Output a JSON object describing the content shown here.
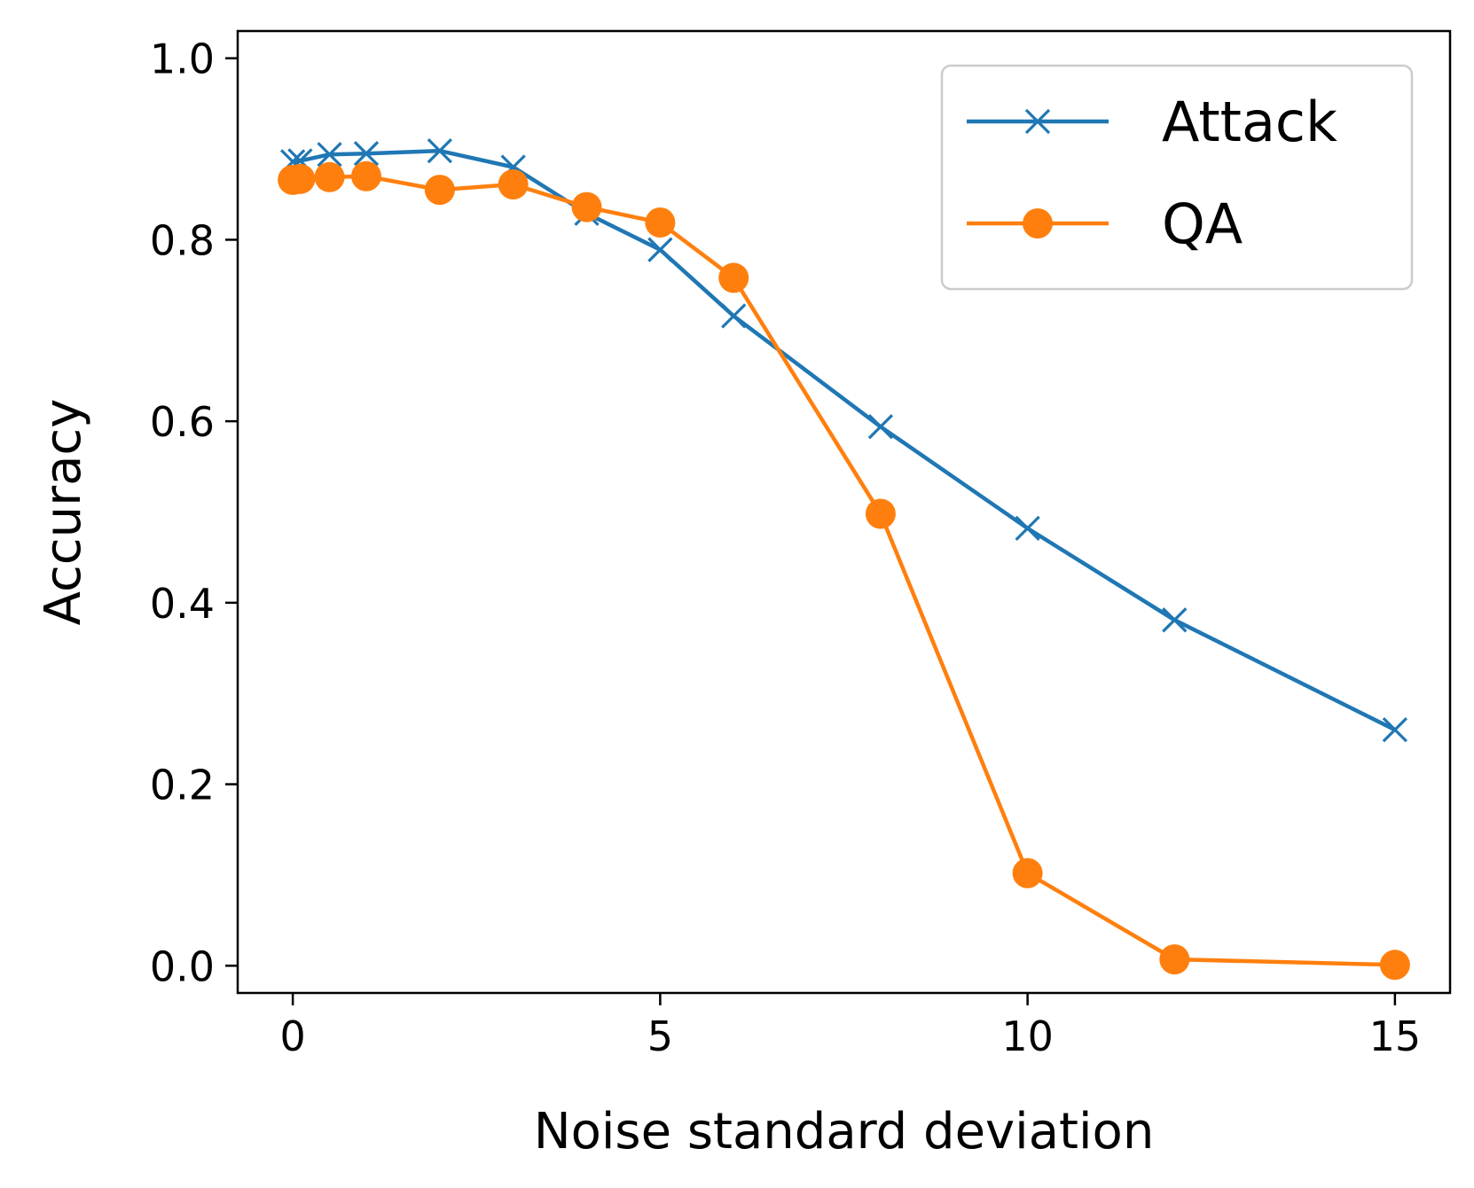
{
  "chart_data": {
    "type": "line",
    "title": "",
    "xlabel": "Noise standard deviation",
    "ylabel": "Accuracy",
    "xlim": [
      -0.75,
      15.75
    ],
    "ylim": [
      -0.03,
      1.03
    ],
    "xticks": [
      0,
      5,
      10,
      15
    ],
    "yticks": [
      0.0,
      0.2,
      0.4,
      0.6,
      0.8,
      1.0
    ],
    "xtick_labels": [
      "0",
      "5",
      "10",
      "15"
    ],
    "ytick_labels": [
      "0.0",
      "0.2",
      "0.4",
      "0.6",
      "0.8",
      "1.0"
    ],
    "grid": false,
    "legend_position": "top-right",
    "series": [
      {
        "name": "Attack",
        "color": "#1f77b4",
        "marker": "x",
        "x": [
          0,
          0.1,
          0.5,
          1,
          2,
          3,
          4,
          5,
          6,
          8,
          10,
          12,
          15
        ],
        "y": [
          0.886,
          0.887,
          0.894,
          0.895,
          0.898,
          0.88,
          0.829,
          0.789,
          0.716,
          0.594,
          0.482,
          0.381,
          0.26
        ]
      },
      {
        "name": "QA",
        "color": "#ff7f0e",
        "marker": "o",
        "x": [
          0,
          0.1,
          0.5,
          1,
          2,
          3,
          4,
          5,
          6,
          8,
          10,
          12,
          15
        ],
        "y": [
          0.866,
          0.867,
          0.869,
          0.87,
          0.855,
          0.861,
          0.836,
          0.819,
          0.758,
          0.498,
          0.102,
          0.007,
          0.001
        ]
      }
    ]
  }
}
